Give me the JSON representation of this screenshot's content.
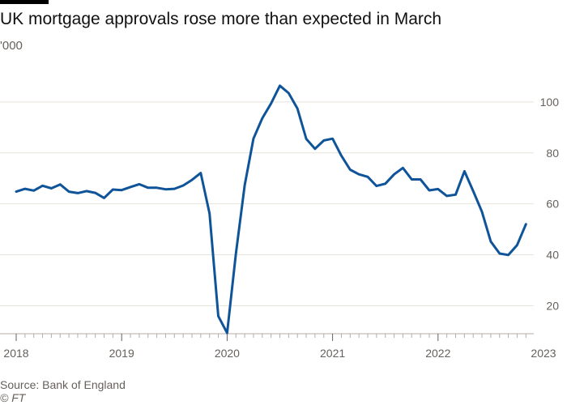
{
  "chart_data": {
    "type": "line",
    "title": "UK mortgage approvals rose more than expected in March",
    "unit_label": "'000",
    "ylabel": "'000",
    "xlabel": "",
    "ylim": [
      9,
      113
    ],
    "y_ticks": [
      20,
      40,
      60,
      80,
      100
    ],
    "x_start": "2018-01",
    "x_ticks": [
      {
        "label": "2018",
        "month_index": 0
      },
      {
        "label": "2019",
        "month_index": 12
      },
      {
        "label": "2020",
        "month_index": 24
      },
      {
        "label": "2021",
        "month_index": 36
      },
      {
        "label": "2022",
        "month_index": 48
      },
      {
        "label": "2023",
        "month_index": 60
      }
    ],
    "grid": true,
    "line_color": "#0f5499",
    "series": [
      {
        "name": "Mortgage approvals",
        "values": [
          64.8,
          65.9,
          65.2,
          67.1,
          66.1,
          67.6,
          64.8,
          64.2,
          65.0,
          64.3,
          62.3,
          65.6,
          65.4,
          66.6,
          67.7,
          66.3,
          66.3,
          65.7,
          65.9,
          67.2,
          69.4,
          72.1,
          56.2,
          15.9,
          9.3,
          40.6,
          67.3,
          85.6,
          93.6,
          99.4,
          106.4,
          103.5,
          97.4,
          85.5,
          81.6,
          84.9,
          85.6,
          78.9,
          73.4,
          71.6,
          70.6,
          67.0,
          67.9,
          71.6,
          74.1,
          69.6,
          69.6,
          65.3,
          65.8,
          63.1,
          63.6,
          72.8,
          65.0,
          56.9,
          45.2,
          40.5,
          39.9,
          43.8,
          52.0
        ]
      }
    ]
  },
  "footer": {
    "source": "Source: Bank of England",
    "copyright": "© FT"
  }
}
